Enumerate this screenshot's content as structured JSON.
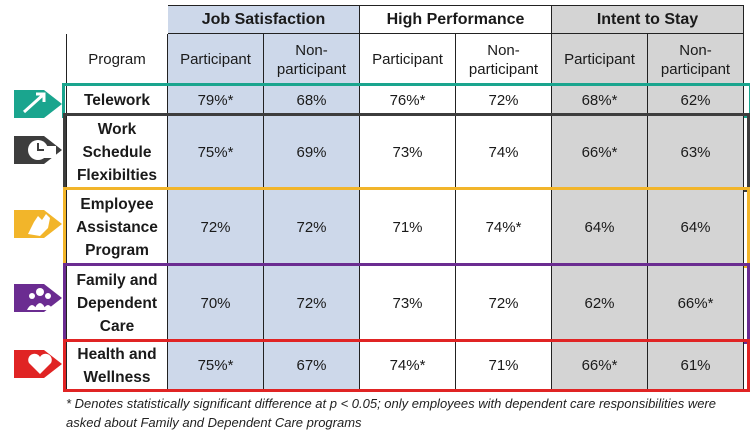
{
  "table": {
    "col_program": "Program",
    "groups": [
      {
        "title": "Job Satisfaction",
        "participant": "Participant",
        "non_participant": "Non-participant"
      },
      {
        "title": "High Performance",
        "participant": "Participant",
        "non_participant": "Non-participant"
      },
      {
        "title": "Intent to Stay",
        "participant": "Participant",
        "non_participant": "Non-participant"
      }
    ],
    "rows": [
      {
        "program": "Telework",
        "values": [
          "79%*",
          "68%",
          "76%*",
          "72%",
          "68%*",
          "62%"
        ],
        "color": "#1aa58e",
        "icon": "telework-icon"
      },
      {
        "program": "Work Schedule Flexibilties",
        "values": [
          "75%*",
          "69%",
          "73%",
          "74%",
          "66%*",
          "63%"
        ],
        "color": "#3d3d3d",
        "icon": "clock-calendar-icon"
      },
      {
        "program": "Employee Assistance Program",
        "values": [
          "72%",
          "72%",
          "71%",
          "74%*",
          "64%",
          "64%"
        ],
        "color": "#f2b52a",
        "icon": "helping-hand-icon"
      },
      {
        "program": "Family and Dependent Care",
        "values": [
          "70%",
          "72%",
          "73%",
          "72%",
          "62%",
          "66%*"
        ],
        "color": "#6b2c91",
        "icon": "family-icon"
      },
      {
        "program": "Health and Wellness",
        "values": [
          "75%*",
          "67%",
          "74%*",
          "71%",
          "66%*",
          "61%"
        ],
        "color": "#e02424",
        "icon": "heart-icon"
      }
    ]
  },
  "footnote": "* Denotes statistically significant difference at p < 0.05; only employees with dependent care responsibilities were asked about Family and Dependent Care programs"
}
